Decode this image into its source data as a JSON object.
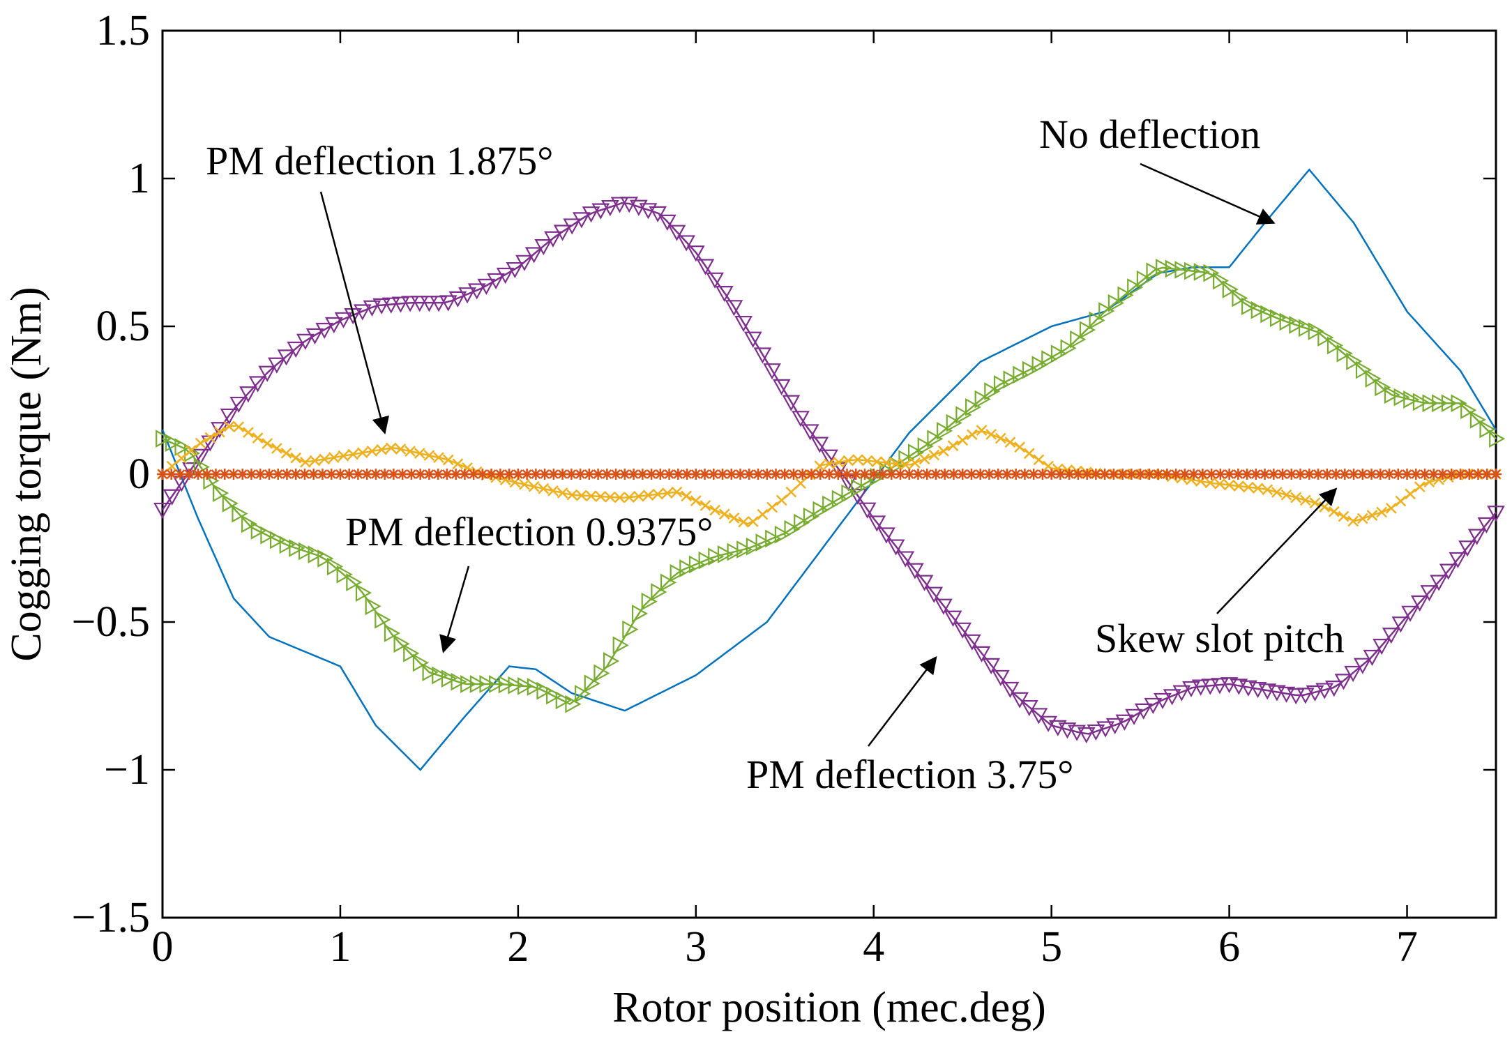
{
  "chart_data": {
    "type": "line",
    "title": "",
    "xlabel": "Rotor position (mec.deg)",
    "ylabel": "Cogging torque (Nm)",
    "xlim": [
      0,
      7.5
    ],
    "ylim": [
      -1.5,
      1.5
    ],
    "xticks": [
      0,
      1,
      2,
      3,
      4,
      5,
      6,
      7
    ],
    "yticks": [
      -1.5,
      -1,
      -0.5,
      0,
      0.5,
      1,
      1.5
    ],
    "xtick_labels": [
      "0",
      "1",
      "2",
      "3",
      "4",
      "5",
      "6",
      "7"
    ],
    "ytick_labels": [
      "−1.5",
      "−1",
      "−0.5",
      "0",
      "0.5",
      "1",
      "1.5"
    ],
    "grid": false,
    "series": [
      {
        "name": "No deflection",
        "color": "#0072BD",
        "marker": "none",
        "x": [
          0,
          0.2,
          0.4,
          0.6,
          0.8,
          1.0,
          1.2,
          1.45,
          1.7,
          1.95,
          2.1,
          2.3,
          2.6,
          3.0,
          3.4,
          3.8,
          4.2,
          4.6,
          5.0,
          5.3,
          5.6,
          5.8,
          6.0,
          6.2,
          6.45,
          6.7,
          7.0,
          7.3,
          7.5
        ],
        "y": [
          0.15,
          -0.15,
          -0.42,
          -0.55,
          -0.6,
          -0.65,
          -0.85,
          -1.0,
          -0.82,
          -0.65,
          -0.66,
          -0.74,
          -0.8,
          -0.68,
          -0.5,
          -0.18,
          0.14,
          0.38,
          0.5,
          0.55,
          0.68,
          0.7,
          0.7,
          0.85,
          1.03,
          0.85,
          0.55,
          0.35,
          0.15
        ]
      },
      {
        "name": "Skew slot pitch",
        "color": "#D95319",
        "marker": "asterisk",
        "x": [
          0,
          7.5
        ],
        "y": [
          0,
          0
        ]
      },
      {
        "name": "PM deflection 1.875°",
        "color": "#EDB120",
        "marker": "x",
        "x": [
          0,
          0.2,
          0.4,
          0.6,
          0.8,
          1.0,
          1.3,
          1.6,
          1.8,
          2.0,
          2.3,
          2.6,
          2.9,
          3.1,
          3.3,
          3.5,
          3.7,
          3.9,
          4.2,
          4.4,
          4.6,
          4.8,
          5.0,
          5.3,
          5.6,
          5.9,
          6.2,
          6.5,
          6.7,
          6.9,
          7.1,
          7.3,
          7.5
        ],
        "y": [
          0.0,
          0.1,
          0.17,
          0.1,
          0.04,
          0.06,
          0.09,
          0.05,
          0.0,
          -0.03,
          -0.07,
          -0.08,
          -0.06,
          -0.12,
          -0.17,
          -0.08,
          0.03,
          0.05,
          0.03,
          0.08,
          0.15,
          0.1,
          0.02,
          0.0,
          0.0,
          -0.03,
          -0.05,
          -0.1,
          -0.16,
          -0.12,
          -0.03,
          0.0,
          0.0
        ]
      },
      {
        "name": "PM deflection 0.9375°",
        "color": "#77AC30",
        "marker": "triangle-right",
        "x": [
          0,
          0.15,
          0.3,
          0.5,
          0.7,
          0.9,
          1.1,
          1.3,
          1.5,
          1.7,
          1.9,
          2.1,
          2.3,
          2.5,
          2.7,
          2.9,
          3.1,
          3.3,
          3.5,
          3.7,
          3.9,
          4.1,
          4.3,
          4.5,
          4.7,
          4.9,
          5.1,
          5.3,
          5.6,
          5.9,
          6.1,
          6.3,
          6.5,
          6.7,
          6.9,
          7.1,
          7.3,
          7.5
        ],
        "y": [
          0.12,
          0.08,
          -0.05,
          -0.18,
          -0.24,
          -0.28,
          -0.38,
          -0.55,
          -0.67,
          -0.71,
          -0.71,
          -0.72,
          -0.78,
          -0.65,
          -0.45,
          -0.33,
          -0.28,
          -0.25,
          -0.2,
          -0.12,
          -0.05,
          0.02,
          0.1,
          0.2,
          0.3,
          0.36,
          0.43,
          0.55,
          0.7,
          0.68,
          0.57,
          0.52,
          0.48,
          0.38,
          0.27,
          0.24,
          0.24,
          0.12
        ]
      },
      {
        "name": "PM deflection 3.75°",
        "color": "#7E2F8E",
        "marker": "triangle-down",
        "x": [
          0,
          0.2,
          0.4,
          0.6,
          0.8,
          1.0,
          1.2,
          1.4,
          1.6,
          1.8,
          2.0,
          2.2,
          2.4,
          2.6,
          2.8,
          3.0,
          3.2,
          3.4,
          3.6,
          3.85,
          4.0,
          4.2,
          4.4,
          4.6,
          4.8,
          5.0,
          5.2,
          5.4,
          5.6,
          5.8,
          6.0,
          6.2,
          6.4,
          6.6,
          6.8,
          7.0,
          7.2,
          7.5
        ],
        "y": [
          -0.12,
          0.05,
          0.22,
          0.35,
          0.45,
          0.52,
          0.57,
          0.58,
          0.58,
          0.63,
          0.7,
          0.8,
          0.88,
          0.92,
          0.88,
          0.75,
          0.58,
          0.38,
          0.18,
          -0.02,
          -0.15,
          -0.3,
          -0.45,
          -0.6,
          -0.75,
          -0.85,
          -0.88,
          -0.84,
          -0.77,
          -0.72,
          -0.71,
          -0.73,
          -0.75,
          -0.72,
          -0.62,
          -0.48,
          -0.35,
          -0.13
        ]
      }
    ],
    "annotations": [
      {
        "text": "No deflection",
        "arrow_to": [
          6.25,
          0.85
        ]
      },
      {
        "text": "PM deflection 1.875°",
        "arrow_to": [
          1.25,
          0.14
        ]
      },
      {
        "text": "PM deflection 0.9375°",
        "arrow_to": [
          1.58,
          -0.6
        ]
      },
      {
        "text": "Skew slot pitch",
        "arrow_to": [
          6.6,
          -0.05
        ]
      },
      {
        "text": "PM deflection 3.75°",
        "arrow_to": [
          4.35,
          -0.62
        ]
      }
    ]
  }
}
